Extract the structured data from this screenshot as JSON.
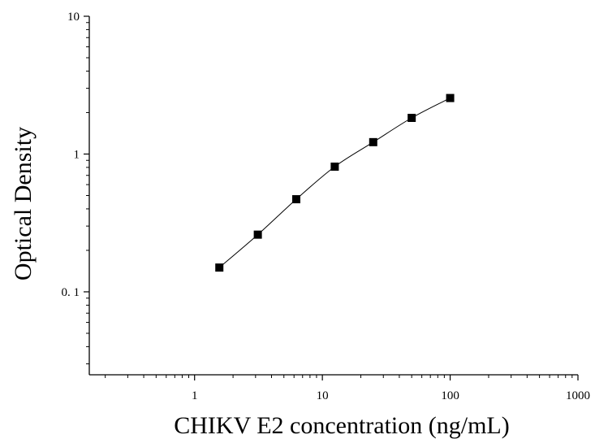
{
  "chart_data": {
    "type": "scatter",
    "title": "",
    "xlabel": "CHIKV E2 concentration (ng/mL)",
    "ylabel": "Optical Density",
    "x_scale": "log",
    "y_scale": "log",
    "xlim": [
      0.15,
      1000
    ],
    "ylim": [
      0.025,
      10
    ],
    "x_ticks": [
      {
        "value": 1,
        "label": "1"
      },
      {
        "value": 10,
        "label": "10"
      },
      {
        "value": 100,
        "label": "100"
      },
      {
        "value": 1000,
        "label": "1000"
      }
    ],
    "y_ticks": [
      {
        "value": 0.1,
        "label": "0. 1"
      },
      {
        "value": 1,
        "label": "1"
      },
      {
        "value": 10,
        "label": "10"
      }
    ],
    "grid": false,
    "legend": "none",
    "series": [
      {
        "x": [
          1.5625,
          3.125,
          6.25,
          12.5,
          25,
          50,
          100
        ],
        "y": [
          0.15,
          0.26,
          0.47,
          0.81,
          1.22,
          1.83,
          2.55
        ],
        "marker": "square",
        "fit_line": true,
        "color": "#000000"
      }
    ]
  }
}
